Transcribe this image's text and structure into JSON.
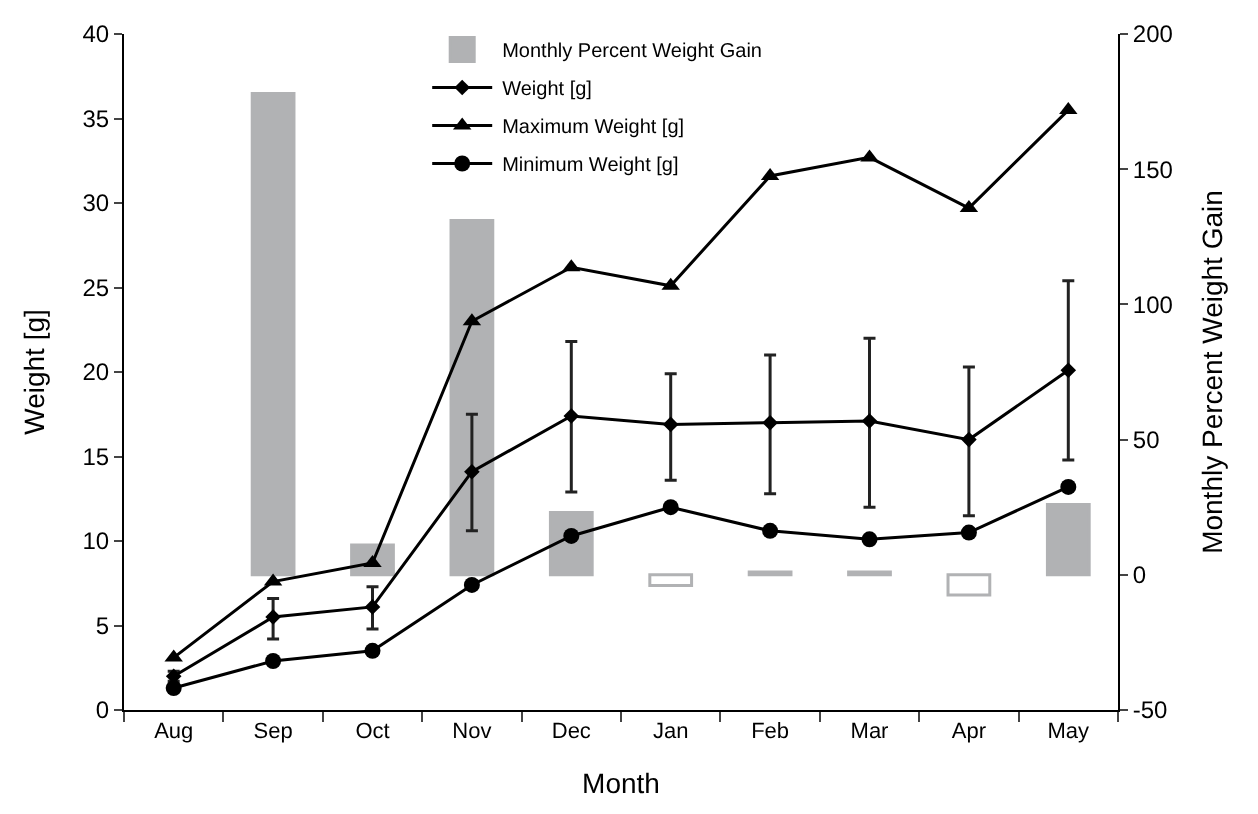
{
  "chart_data": {
    "type": "line",
    "xlabel": "Month",
    "ylabel": "Weight [g]",
    "y2label": "Monthly Percent Weight Gain",
    "categories": [
      "Aug",
      "Sep",
      "Oct",
      "Nov",
      "Dec",
      "Jan",
      "Feb",
      "Mar",
      "Apr",
      "May"
    ],
    "ylim": [
      0,
      40
    ],
    "yticks": [
      0,
      5,
      10,
      15,
      20,
      25,
      30,
      35,
      40
    ],
    "y2lim": [
      -50,
      200
    ],
    "y2ticks": [
      -50,
      0,
      50,
      100,
      150,
      200
    ],
    "legend": "top",
    "series": [
      {
        "name": "Monthly Percent Weight Gain",
        "type": "bar",
        "axis": "y2",
        "color": "#b1b2b4",
        "colors": [
          "#b1b2b4",
          "#b1b2b4",
          "#b1b2b4",
          "#b1b2b4",
          "#b1b2b4",
          "#ffffff",
          "#b1b2b4",
          "#b1b2b4",
          "#ffffff",
          "#b1b2b4"
        ],
        "values": [
          null,
          178,
          11,
          131,
          23,
          -4,
          1,
          1,
          -7.5,
          26
        ]
      },
      {
        "name": "Weight [g]",
        "color": "#000000",
        "marker": "diamond",
        "values": [
          2.0,
          5.5,
          6.1,
          14.1,
          17.4,
          16.9,
          17.0,
          17.1,
          16.0,
          20.1
        ],
        "errors": [
          [
            1.7,
            2.3
          ],
          [
            4.2,
            6.6
          ],
          [
            4.8,
            7.3
          ],
          [
            10.6,
            17.5
          ],
          [
            12.9,
            21.8
          ],
          [
            13.6,
            19.9
          ],
          [
            12.8,
            21.0
          ],
          [
            12.0,
            22.0
          ],
          [
            11.5,
            20.3
          ],
          [
            14.8,
            25.4
          ]
        ]
      },
      {
        "name": "Maximum Weight [g]",
        "color": "#000000",
        "marker": "triangle",
        "values": [
          3.1,
          7.6,
          8.7,
          23.0,
          26.2,
          25.1,
          31.6,
          32.7,
          29.7,
          35.5
        ]
      },
      {
        "name": "Minimum Weight [g]",
        "color": "#000000",
        "marker": "circle",
        "values": [
          1.3,
          2.9,
          3.5,
          7.4,
          10.3,
          12.0,
          10.6,
          10.1,
          10.5,
          13.2
        ]
      }
    ]
  }
}
